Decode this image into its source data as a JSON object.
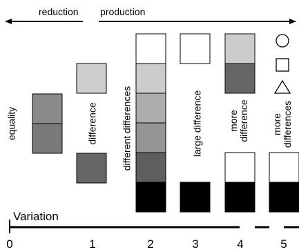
{
  "top": {
    "reduction": "reduction",
    "production": "production"
  },
  "columns": [
    {
      "label": "equality",
      "squares": [
        "#8a8a8a",
        "#7a7a7a"
      ]
    },
    {
      "label": "difference",
      "squares": [
        "#cfcfcf",
        "#666666"
      ]
    },
    {
      "label": "different differences",
      "squares": [
        "#ffffff",
        "#cccccc",
        "#adadad",
        "#959595",
        "#7c7c7c",
        "#5e5e5e",
        "#000000"
      ]
    },
    {
      "label": "large difference",
      "squares": [
        "#ffffff",
        "#000000"
      ]
    },
    {
      "label_lines": [
        "more",
        "difference"
      ],
      "squares": [
        "#cccccc",
        "#666666",
        "#ffffff",
        "#000000"
      ]
    },
    {
      "label_lines": [
        "more",
        "differences"
      ],
      "squares": [
        "#ffffff",
        "#000000"
      ],
      "shapes": [
        "circle-icon",
        "square-icon",
        "triangle-icon"
      ]
    }
  ],
  "axis": {
    "label": "Variation",
    "ticks": [
      "0",
      "1",
      "2",
      "3",
      "4",
      "5"
    ]
  }
}
